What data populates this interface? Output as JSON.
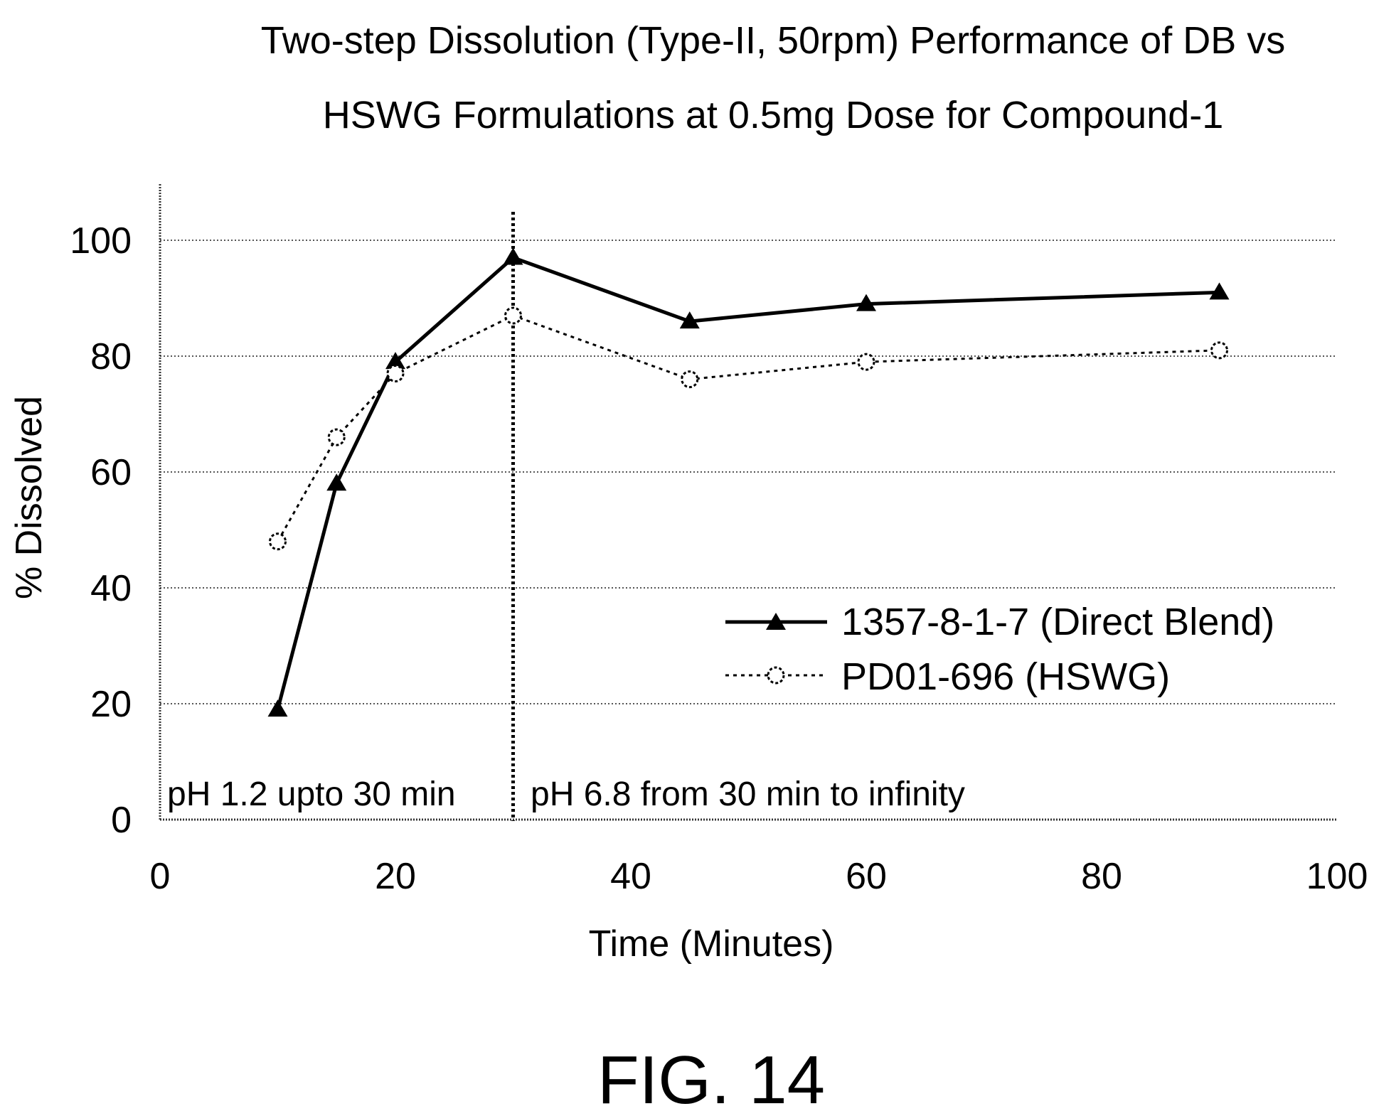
{
  "chart_data": {
    "type": "line",
    "title_lines": [
      "Two-step Dissolution (Type-II, 50rpm) Performance of DB vs",
      "HSWG Formulations at 0.5mg Dose for Compound-1"
    ],
    "xlabel": "Time (Minutes)",
    "ylabel": "% Dissolved",
    "xlim": [
      0,
      100
    ],
    "ylim": [
      0,
      100
    ],
    "xticks": [
      0,
      20,
      40,
      60,
      80,
      100
    ],
    "yticks": [
      0,
      20,
      40,
      60,
      80,
      100
    ],
    "grid": "horizontal dotted",
    "legend_position": "right",
    "series": [
      {
        "name": "1357-8-1-7 (Direct Blend)",
        "style": "solid",
        "marker": "filled-triangle",
        "color": "#000000",
        "x": [
          10,
          15,
          20,
          30,
          45,
          60,
          90
        ],
        "y": [
          19,
          58,
          79,
          97,
          86,
          89,
          91
        ]
      },
      {
        "name": "PD01-696 (HSWG)",
        "style": "dotted",
        "marker": "open-circle",
        "color": "#000000",
        "x": [
          10,
          15,
          20,
          30,
          45,
          60,
          90
        ],
        "y": [
          48,
          66,
          77,
          87,
          76,
          79,
          81
        ]
      }
    ],
    "reference_line": {
      "x": 30,
      "style": "dotted-vertical"
    },
    "annotations": [
      "pH 1.2 upto 30 min",
      "pH 6.8 from 30 min to infinity"
    ]
  },
  "figure_label": "FIG. 14"
}
